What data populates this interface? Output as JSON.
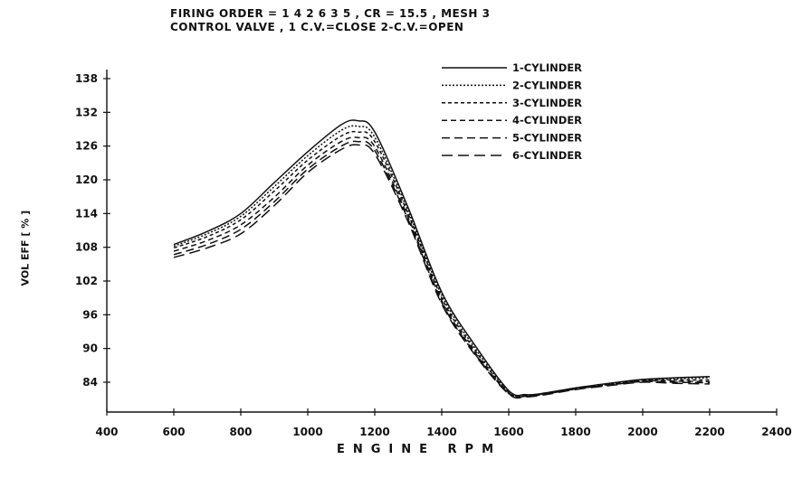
{
  "chart_data": {
    "type": "line",
    "title_line1": "FIRING ORDER = 1 4 2 6 3 5 , CR = 15.5 , MESH 3",
    "title_line2": "CONTROL VALVE , 1 C.V.=CLOSE  2-C.V.=OPEN",
    "xlabel": "ENGINE RPM",
    "ylabel": "VOL EFF [ % ]",
    "xlim": [
      400,
      2400
    ],
    "ylim": [
      80,
      141
    ],
    "xticks": [
      400,
      600,
      800,
      1000,
      1200,
      1400,
      1600,
      1800,
      2000,
      2200,
      2400
    ],
    "yticks": [
      84,
      90,
      96,
      102,
      108,
      114,
      120,
      126,
      132,
      138
    ],
    "grid": false,
    "legend_position": "top-right",
    "x": [
      600,
      700,
      800,
      900,
      1000,
      1100,
      1150,
      1200,
      1300,
      1400,
      1500,
      1600,
      1650,
      1700,
      1800,
      1900,
      2000,
      2100,
      2200
    ],
    "series": [
      {
        "name": "1-CYLINDER",
        "dash": "",
        "values": [
          108.5,
          110.8,
          114.0,
          119.5,
          125.0,
          129.8,
          130.5,
          128.5,
          115.0,
          100.0,
          90.5,
          82.5,
          81.8,
          82.0,
          83.0,
          83.8,
          84.5,
          84.8,
          85.0
        ]
      },
      {
        "name": "2-CYLINDER",
        "dash": "2,2",
        "values": [
          108.2,
          110.4,
          113.5,
          118.8,
          124.3,
          128.8,
          129.5,
          127.6,
          114.4,
          99.5,
          90.0,
          82.3,
          81.6,
          81.9,
          82.9,
          83.7,
          84.4,
          84.6,
          84.8
        ]
      },
      {
        "name": "3-CYLINDER",
        "dash": "4,3",
        "values": [
          107.9,
          109.9,
          112.9,
          118.0,
          123.5,
          127.8,
          128.5,
          126.8,
          113.9,
          99.0,
          89.6,
          82.2,
          81.6,
          81.9,
          82.9,
          83.6,
          84.3,
          84.4,
          84.4
        ]
      },
      {
        "name": "4-CYLINDER",
        "dash": "6,4",
        "values": [
          107.3,
          109.2,
          112.0,
          116.9,
          122.6,
          126.8,
          127.5,
          125.9,
          113.3,
          98.5,
          89.2,
          82.0,
          81.5,
          81.8,
          82.8,
          83.5,
          84.2,
          84.2,
          84.1
        ]
      },
      {
        "name": "5-CYLINDER",
        "dash": "9,5",
        "values": [
          106.7,
          108.5,
          111.2,
          116.1,
          121.9,
          126.0,
          126.8,
          125.2,
          112.9,
          98.2,
          89.0,
          82.0,
          81.5,
          81.8,
          82.8,
          83.5,
          84.1,
          84.0,
          83.9
        ]
      },
      {
        "name": "6-CYLINDER",
        "dash": "12,6",
        "values": [
          106.2,
          107.9,
          110.4,
          115.4,
          121.3,
          125.4,
          126.2,
          124.6,
          112.5,
          97.9,
          88.8,
          81.9,
          81.4,
          81.7,
          82.7,
          83.4,
          84.0,
          83.8,
          83.7
        ]
      }
    ]
  }
}
